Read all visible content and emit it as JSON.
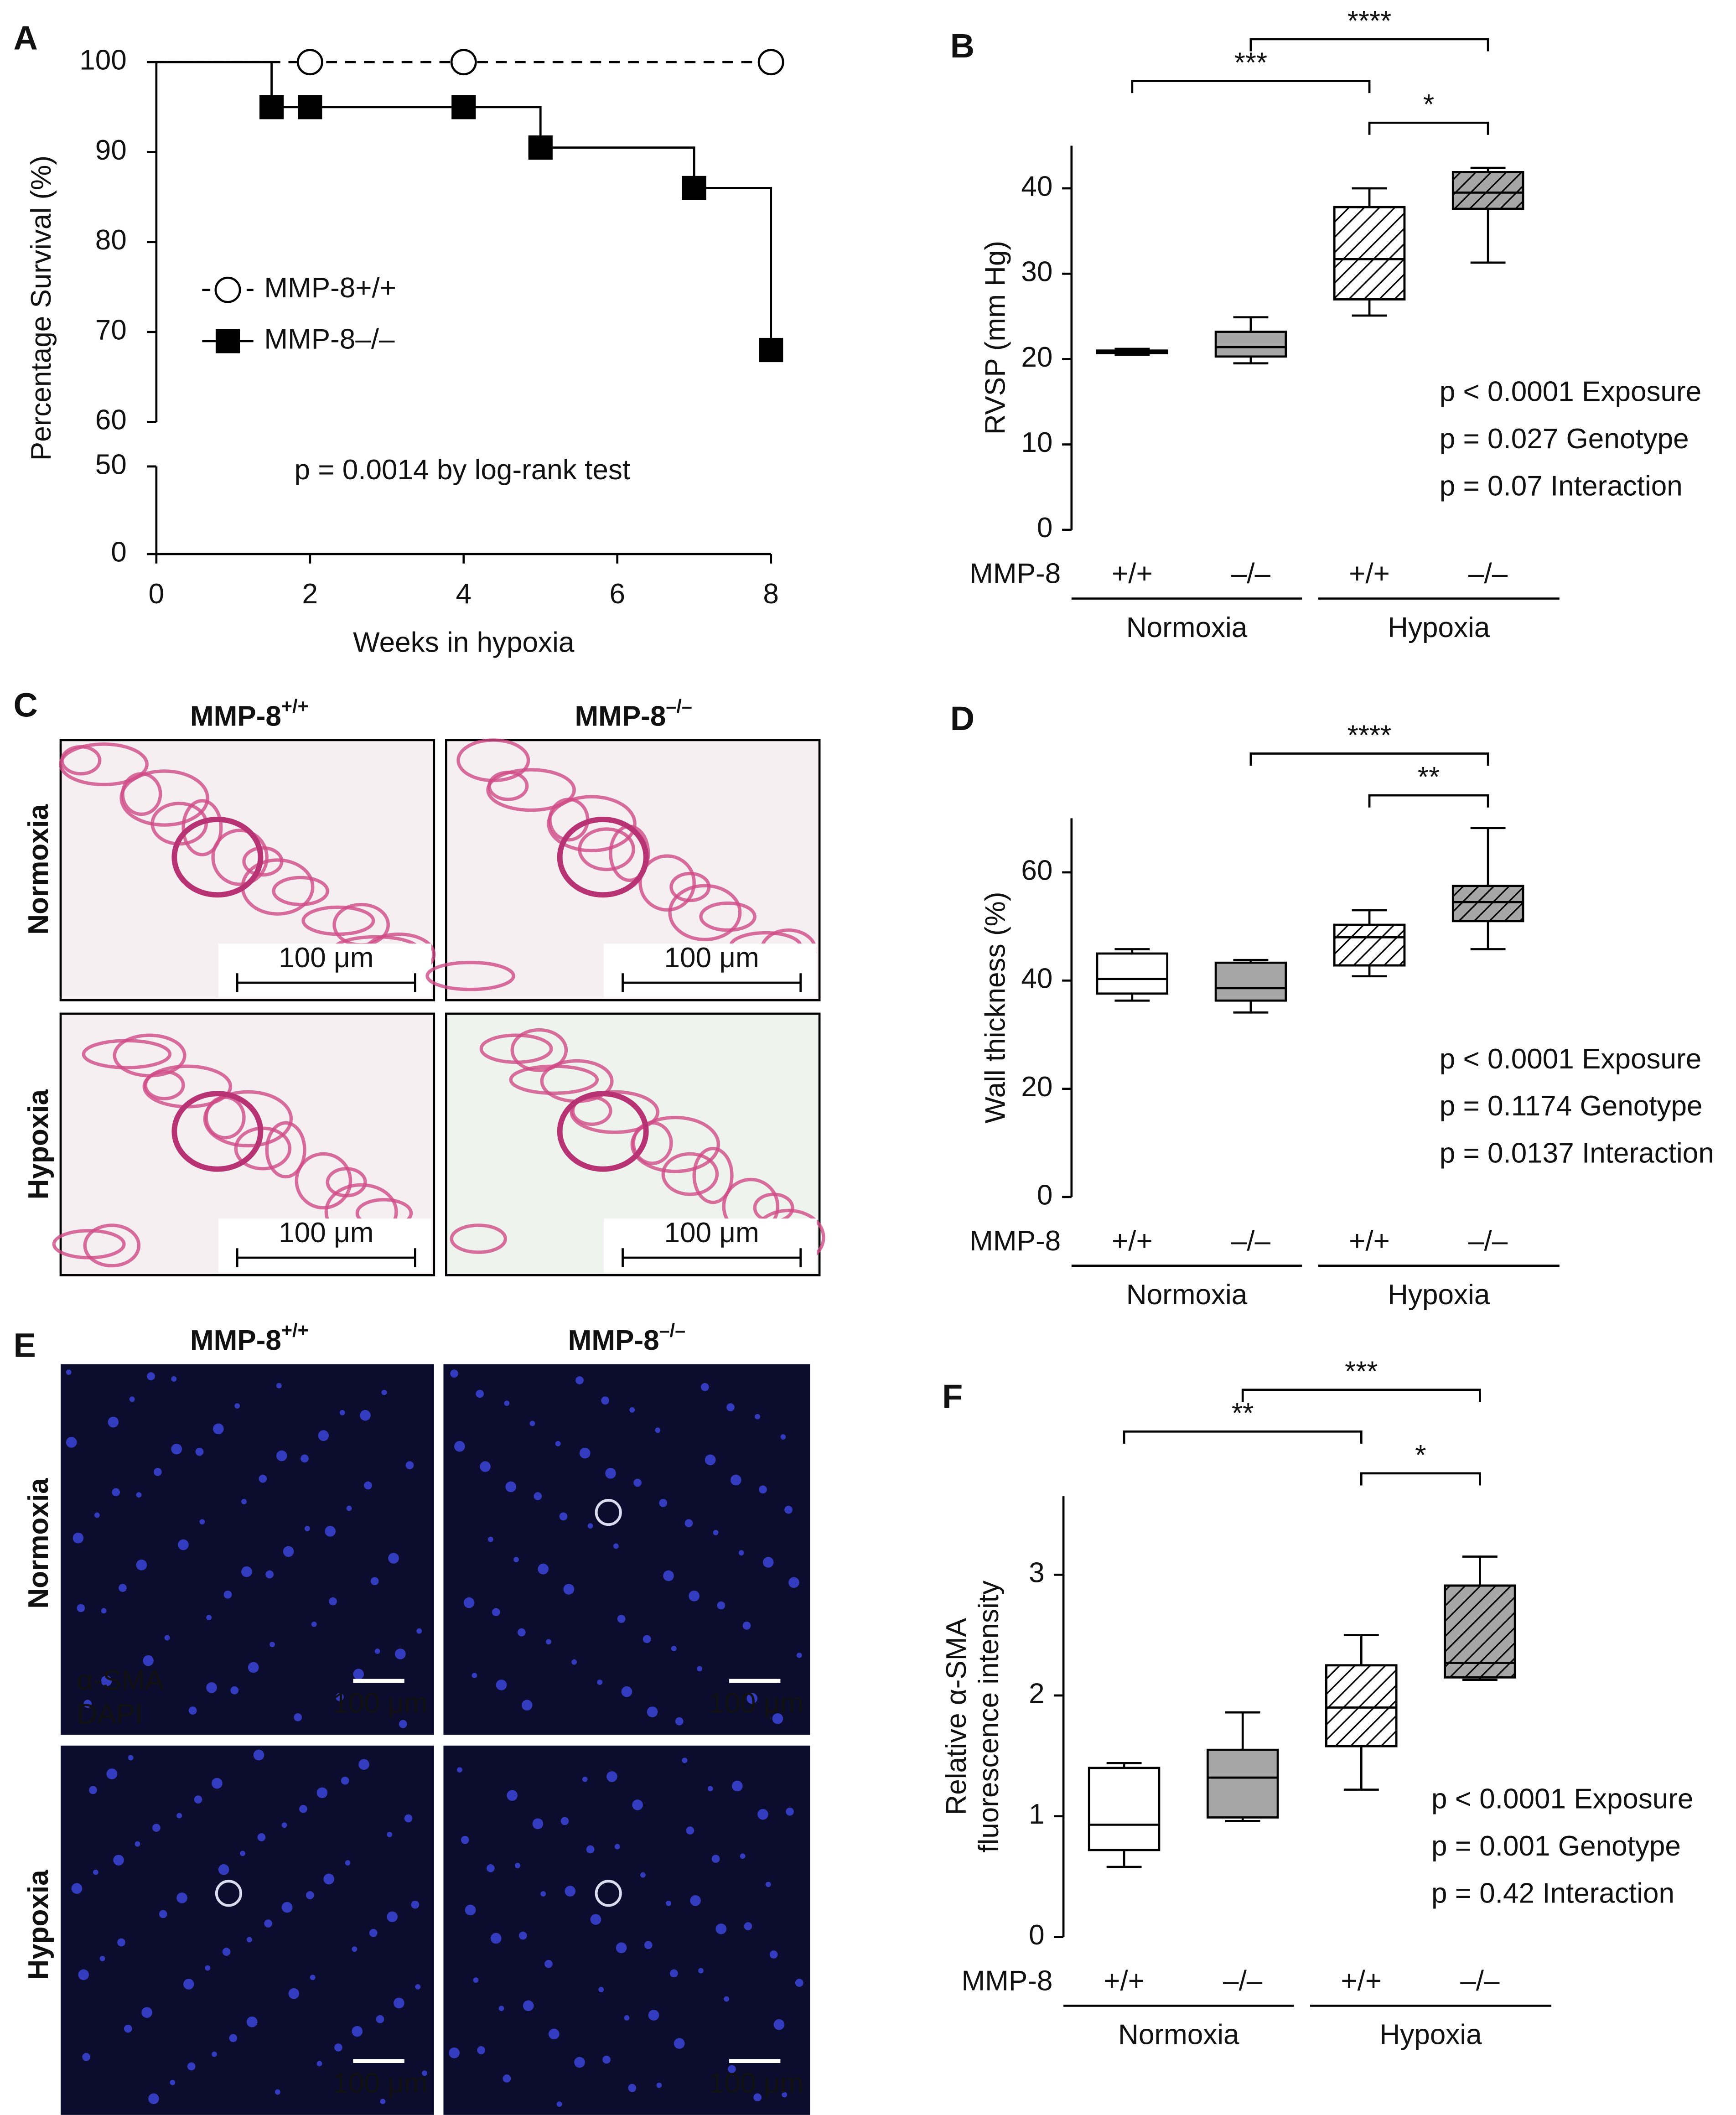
{
  "chart_data": [
    {
      "type": "survival",
      "panel_label": "A",
      "xlabel": "Weeks in hypoxia",
      "ylabel": "Percentage Survival (%)",
      "xlim": [
        0,
        8
      ],
      "xticks": [
        0,
        2,
        4,
        6,
        8
      ],
      "ylim": [
        0,
        100
      ],
      "yticks": [
        0,
        50,
        60,
        70,
        80,
        90,
        100
      ],
      "axis_break": [
        50,
        60
      ],
      "annotation": "p = 0.0014 by log-rank test",
      "legend": "left",
      "series": [
        {
          "name": "MMP-8+/+",
          "color": "#000000",
          "dashed": true,
          "marker": "open-circle",
          "x": [
            0,
            2,
            4,
            8
          ],
          "values": [
            100,
            100,
            100,
            100
          ]
        },
        {
          "name": "MMP-8–/–",
          "color": "#000000",
          "dashed": false,
          "marker": "filled-square",
          "x": [
            0,
            1.5,
            2,
            4,
            5,
            7,
            8
          ],
          "values": [
            100,
            95,
            95,
            95,
            90.5,
            86,
            68
          ]
        }
      ]
    },
    {
      "type": "box",
      "panel_label": "B",
      "ylabel": "RVSP (mm Hg)",
      "ylim": [
        0,
        45
      ],
      "yticks": [
        0,
        10,
        20,
        30,
        40
      ],
      "group_axis_label": "MMP-8",
      "categories": [
        "+/+",
        "–/–",
        "+/+",
        "–/–"
      ],
      "groups": [
        "Normoxia",
        "Hypoxia"
      ],
      "box_colors": [
        "#ffffff",
        "#a6a6a6",
        "#ffffff",
        "#a6a6a6"
      ],
      "hatched": [
        false,
        false,
        true,
        true
      ],
      "boxes": [
        {
          "min": 20.5,
          "q1": 20.7,
          "median": 20.8,
          "q3": 21.0,
          "max": 21.2
        },
        {
          "min": 19.5,
          "q1": 20.3,
          "median": 21.4,
          "q3": 23.2,
          "max": 24.9
        },
        {
          "min": 25.1,
          "q1": 27.0,
          "median": 31.7,
          "q3": 37.8,
          "max": 40.0
        },
        {
          "min": 31.3,
          "q1": 37.6,
          "median": 39.5,
          "q3": 41.9,
          "max": 42.4
        }
      ],
      "significance": [
        {
          "from": 0,
          "to": 2,
          "label": "***"
        },
        {
          "from": 1,
          "to": 3,
          "label": "****"
        },
        {
          "from": 2,
          "to": 3,
          "label": "*"
        }
      ],
      "stats": [
        "p < 0.0001 Exposure",
        "p = 0.027 Genotype",
        "p = 0.07 Interaction"
      ]
    },
    {
      "type": "box",
      "panel_label": "D",
      "ylabel": "Wall thickness (%)",
      "ylim": [
        0,
        70
      ],
      "yticks": [
        0,
        20,
        40,
        60
      ],
      "group_axis_label": "MMP-8",
      "categories": [
        "+/+",
        "–/–",
        "+/+",
        "–/–"
      ],
      "groups": [
        "Normoxia",
        "Hypoxia"
      ],
      "box_colors": [
        "#ffffff",
        "#a6a6a6",
        "#ffffff",
        "#a6a6a6"
      ],
      "hatched": [
        false,
        false,
        true,
        true
      ],
      "boxes": [
        {
          "min": 36.3,
          "q1": 37.6,
          "median": 40.3,
          "q3": 45.0,
          "max": 45.8
        },
        {
          "min": 34.1,
          "q1": 36.3,
          "median": 38.6,
          "q3": 43.3,
          "max": 43.8
        },
        {
          "min": 40.8,
          "q1": 42.8,
          "median": 48.0,
          "q3": 50.3,
          "max": 53.0
        },
        {
          "min": 45.8,
          "q1": 51.0,
          "median": 54.5,
          "q3": 57.5,
          "max": 68.2
        }
      ],
      "significance": [
        {
          "from": 1,
          "to": 3,
          "label": "****"
        },
        {
          "from": 2,
          "to": 3,
          "label": "**"
        }
      ],
      "stats": [
        "p < 0.0001 Exposure",
        "p = 0.1174 Genotype",
        "p = 0.0137 Interaction"
      ]
    },
    {
      "type": "box",
      "panel_label": "F",
      "ylabel": [
        "Relative α-SMA",
        "fluorescence intensity"
      ],
      "ylim": [
        0,
        3.65
      ],
      "yticks": [
        0,
        1,
        2,
        3
      ],
      "group_axis_label": "MMP-8",
      "categories": [
        "+/+",
        "–/–",
        "+/+",
        "–/–"
      ],
      "groups": [
        "Normoxia",
        "Hypoxia"
      ],
      "box_colors": [
        "#ffffff",
        "#a6a6a6",
        "#ffffff",
        "#a6a6a6"
      ],
      "hatched": [
        false,
        false,
        true,
        true
      ],
      "boxes": [
        {
          "min": 0.58,
          "q1": 0.72,
          "median": 0.93,
          "q3": 1.4,
          "max": 1.44
        },
        {
          "min": 0.96,
          "q1": 0.99,
          "median": 1.32,
          "q3": 1.55,
          "max": 1.86
        },
        {
          "min": 1.22,
          "q1": 1.58,
          "median": 1.9,
          "q3": 2.25,
          "max": 2.5
        },
        {
          "min": 2.13,
          "q1": 2.15,
          "median": 2.27,
          "q3": 2.91,
          "max": 3.15
        }
      ],
      "significance": [
        {
          "from": 0,
          "to": 2,
          "label": "**"
        },
        {
          "from": 1,
          "to": 3,
          "label": "***"
        },
        {
          "from": 2,
          "to": 3,
          "label": "*"
        }
      ],
      "stats": [
        "p < 0.0001 Exposure",
        "p = 0.001 Genotype",
        "p = 0.42 Interaction"
      ]
    }
  ],
  "panel_c": {
    "panel_label": "C",
    "columns": [
      {
        "text": "MMP-8",
        "superscript": "+/+"
      },
      {
        "text": "MMP-8",
        "superscript": "–/–"
      }
    ],
    "rows": [
      "Normoxia",
      "Hypoxia"
    ],
    "scale_bar": "100 μm"
  },
  "panel_e": {
    "panel_label": "E",
    "columns": [
      {
        "text": "MMP-8",
        "superscript": "+/+"
      },
      {
        "text": "MMP-8",
        "superscript": "–/–"
      }
    ],
    "rows": [
      "Normoxia",
      "Hypoxia"
    ],
    "scale_bar": "100 μm",
    "stain_labels": [
      "α-SMA",
      "DAPI"
    ]
  }
}
